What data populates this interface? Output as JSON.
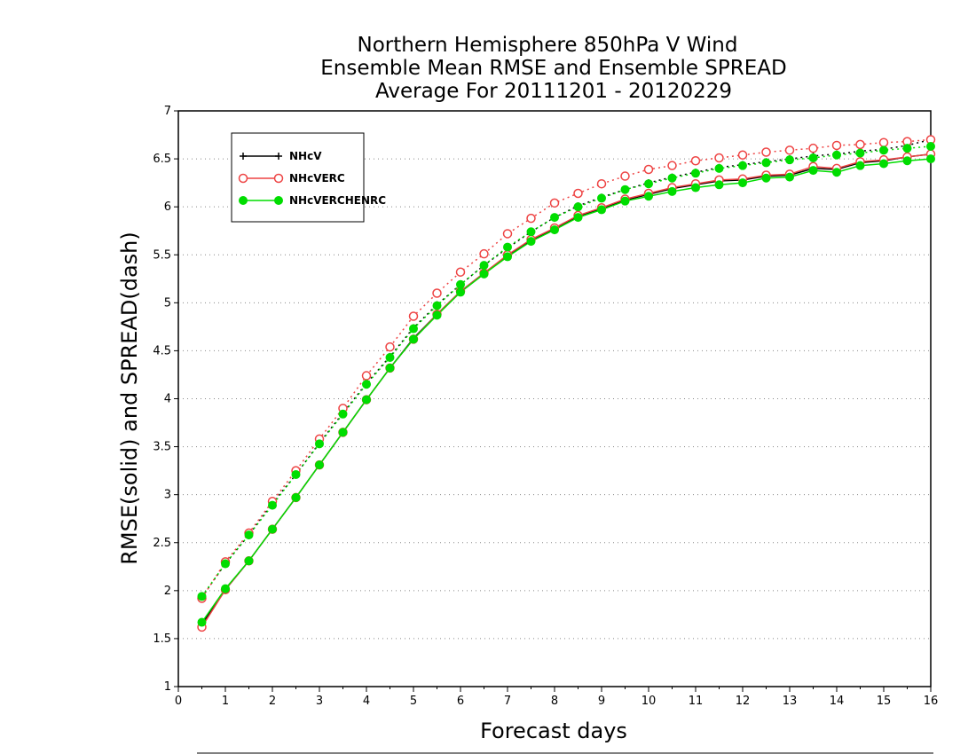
{
  "chart_data": {
    "type": "line",
    "title": [
      "Northern Hemisphere 850hPa V Wind",
      "Ensemble Mean RMSE and Ensemble SPREAD",
      "Average For 20111201 - 20120229"
    ],
    "xlabel": "Forecast days",
    "ylabel": "RMSE(solid) and SPREAD(dash)",
    "xlim": [
      0,
      16
    ],
    "ylim": [
      1,
      7
    ],
    "x_ticks": [
      0,
      1,
      2,
      3,
      4,
      5,
      6,
      7,
      8,
      9,
      10,
      11,
      12,
      13,
      14,
      15,
      16
    ],
    "y_ticks": [
      1,
      1.5,
      2,
      2.5,
      3,
      3.5,
      4,
      4.5,
      5,
      5.5,
      6,
      6.5,
      7
    ],
    "grid": "horizontal-dotted",
    "legend_position": "top-left",
    "x": [
      0.5,
      1,
      1.5,
      2,
      2.5,
      3,
      3.5,
      4,
      4.5,
      5,
      5.5,
      6,
      6.5,
      7,
      7.5,
      8,
      8.5,
      9,
      9.5,
      10,
      10.5,
      11,
      11.5,
      12,
      12.5,
      13,
      13.5,
      14,
      14.5,
      15,
      15.5,
      16
    ],
    "series": [
      {
        "name": "NHcV",
        "color": "#000000",
        "marker": "plus",
        "rmse": [
          1.65,
          2.01,
          2.31,
          2.64,
          2.97,
          3.31,
          3.65,
          3.99,
          4.32,
          4.63,
          4.88,
          5.12,
          5.31,
          5.49,
          5.65,
          5.77,
          5.9,
          5.98,
          6.07,
          6.13,
          6.19,
          6.23,
          6.27,
          6.28,
          6.32,
          6.33,
          6.4,
          6.39,
          6.46,
          6.48,
          6.52,
          6.55
        ],
        "spread": [
          1.93,
          2.28,
          2.58,
          2.91,
          3.21,
          3.54,
          3.85,
          4.16,
          4.44,
          4.74,
          4.98,
          5.19,
          5.39,
          5.57,
          5.74,
          5.89,
          6.01,
          6.1,
          6.18,
          6.25,
          6.31,
          6.36,
          6.41,
          6.44,
          6.47,
          6.5,
          6.53,
          6.55,
          6.58,
          6.6,
          6.64,
          6.7
        ]
      },
      {
        "name": "NHcVERC",
        "color": "#ee4444",
        "marker": "open-circle",
        "rmse": [
          1.62,
          2.01,
          2.31,
          2.64,
          2.97,
          3.31,
          3.65,
          3.99,
          4.32,
          4.62,
          4.88,
          5.12,
          5.31,
          5.5,
          5.66,
          5.78,
          5.91,
          5.99,
          6.08,
          6.14,
          6.2,
          6.24,
          6.28,
          6.29,
          6.33,
          6.34,
          6.42,
          6.4,
          6.47,
          6.49,
          6.52,
          6.55
        ],
        "spread": [
          1.92,
          2.3,
          2.6,
          2.93,
          3.25,
          3.58,
          3.9,
          4.24,
          4.54,
          4.86,
          5.1,
          5.32,
          5.51,
          5.72,
          5.88,
          6.04,
          6.14,
          6.24,
          6.32,
          6.39,
          6.43,
          6.48,
          6.51,
          6.54,
          6.57,
          6.59,
          6.61,
          6.64,
          6.65,
          6.67,
          6.68,
          6.7
        ]
      },
      {
        "name": "NHcVERCHENRC",
        "color": "#00dd00",
        "marker": "filled-circle",
        "rmse": [
          1.67,
          2.02,
          2.31,
          2.64,
          2.97,
          3.31,
          3.65,
          3.99,
          4.32,
          4.62,
          4.87,
          5.11,
          5.3,
          5.48,
          5.64,
          5.76,
          5.89,
          5.97,
          6.06,
          6.11,
          6.16,
          6.2,
          6.23,
          6.25,
          6.3,
          6.31,
          6.38,
          6.36,
          6.43,
          6.45,
          6.48,
          6.5
        ],
        "spread": [
          1.94,
          2.28,
          2.58,
          2.89,
          3.21,
          3.53,
          3.84,
          4.15,
          4.43,
          4.73,
          4.97,
          5.19,
          5.39,
          5.58,
          5.74,
          5.89,
          6.0,
          6.09,
          6.18,
          6.24,
          6.3,
          6.35,
          6.4,
          6.43,
          6.46,
          6.49,
          6.51,
          6.54,
          6.56,
          6.59,
          6.61,
          6.63
        ]
      }
    ]
  }
}
